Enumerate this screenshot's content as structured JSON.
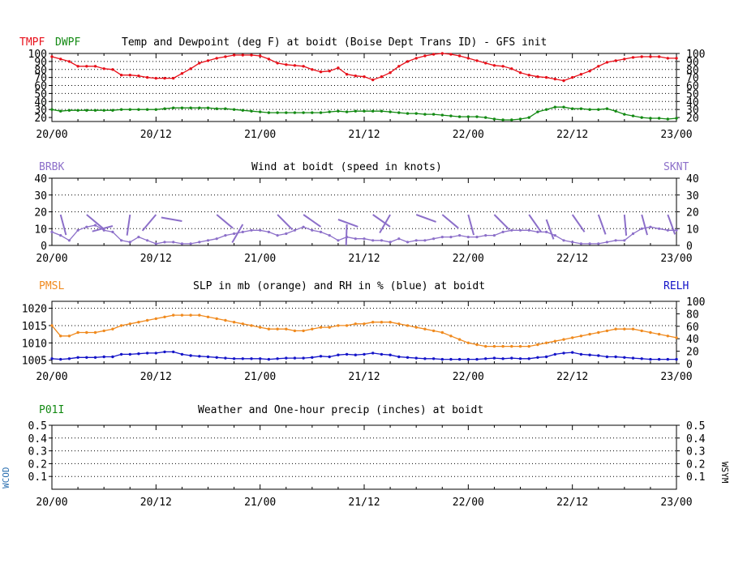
{
  "colors": {
    "temp": "#e8101a",
    "dewpoint": "#138a13",
    "wind": "#8c6fc9",
    "slp": "#f08a1e",
    "rh": "#1414c8",
    "precip": "#138a13",
    "wcod": "#2a6fb0",
    "axis": "#000000",
    "grid": "#000000"
  },
  "time_labels": [
    "20/00",
    "20/12",
    "21/00",
    "21/12",
    "22/00",
    "22/12",
    "23/00"
  ],
  "panel1": {
    "left_label_1": "TMPF",
    "left_label_2": "DWPF",
    "title": "Temp and Dewpoint (deg F) at boidt (Boise Dept Trans ID) - GFS init"
  },
  "panel2": {
    "left_label": "BRBK",
    "title": "Wind at  boidt (speed in knots)",
    "right_label": "SKNT"
  },
  "panel3": {
    "left_label": "PMSL",
    "title": "SLP in mb (orange) and RH in % (blue) at  boidt",
    "right_label": "RELH"
  },
  "panel4": {
    "left_label": "P01I",
    "title": "Weather and One-hour precip (inches) at  boidt",
    "side_left": "WCOD",
    "side_right": "WSYM"
  },
  "chart_data": [
    {
      "type": "line",
      "title": "Temp and Dewpoint (deg F) at boidt (Boise Dept Trans ID) - GFS init",
      "x_hours_range": [
        0,
        72
      ],
      "ylim": [
        15,
        100
      ],
      "yticks_left": [
        20,
        30,
        40,
        50,
        60,
        70,
        80,
        90,
        100
      ],
      "yticks_right": [
        20,
        30,
        40,
        50,
        60,
        70,
        80,
        90,
        100
      ],
      "series": [
        {
          "name": "TMPF",
          "x": [
            0,
            1,
            2,
            3,
            4,
            5,
            6,
            7,
            8,
            9,
            10,
            11,
            12,
            13,
            14,
            15,
            16,
            17,
            18,
            19,
            20,
            21,
            22,
            23,
            24,
            25,
            26,
            27,
            28,
            29,
            30,
            31,
            32,
            33,
            34,
            35,
            36,
            37,
            38,
            39,
            40,
            41,
            42,
            43,
            44,
            45,
            46,
            47,
            48,
            49,
            50,
            51,
            52,
            53,
            54,
            55,
            56,
            57,
            58,
            59,
            60,
            61,
            62,
            63,
            64,
            65,
            66,
            67,
            68,
            69,
            70,
            71,
            72
          ],
          "values": [
            96,
            93,
            90,
            84,
            84,
            84,
            81,
            80,
            73,
            73,
            72,
            70,
            69,
            69,
            69,
            75,
            81,
            88,
            91,
            94,
            96,
            98,
            98,
            98,
            97,
            93,
            88,
            86,
            85,
            84,
            80,
            77,
            78,
            82,
            74,
            72,
            71,
            67,
            71,
            76,
            84,
            90,
            94,
            97,
            99,
            100,
            99,
            97,
            94,
            91,
            88,
            85,
            84,
            81,
            76,
            73,
            71,
            70,
            68,
            66,
            70,
            74,
            78,
            84,
            89,
            91,
            93,
            95,
            96,
            96,
            96,
            94,
            94
          ]
        },
        {
          "name": "DWPF",
          "x": [
            0,
            1,
            2,
            3,
            4,
            5,
            6,
            7,
            8,
            9,
            10,
            11,
            12,
            13,
            14,
            15,
            16,
            17,
            18,
            19,
            20,
            21,
            22,
            23,
            24,
            25,
            26,
            27,
            28,
            29,
            30,
            31,
            32,
            33,
            34,
            35,
            36,
            37,
            38,
            39,
            40,
            41,
            42,
            43,
            44,
            45,
            46,
            47,
            48,
            49,
            50,
            51,
            52,
            53,
            54,
            55,
            56,
            57,
            58,
            59,
            60,
            61,
            62,
            63,
            64,
            65,
            66,
            67,
            68,
            69,
            70,
            71,
            72
          ],
          "values": [
            30,
            28,
            29,
            29,
            29,
            29,
            29,
            29,
            30,
            30,
            30,
            30,
            30,
            31,
            32,
            32,
            32,
            32,
            32,
            31,
            31,
            30,
            29,
            28,
            27,
            26,
            26,
            26,
            26,
            26,
            26,
            26,
            27,
            28,
            27,
            28,
            28,
            28,
            28,
            27,
            26,
            25,
            25,
            24,
            24,
            23,
            22,
            21,
            21,
            21,
            20,
            18,
            17,
            17,
            18,
            20,
            27,
            30,
            33,
            33,
            31,
            31,
            30,
            30,
            31,
            28,
            24,
            22,
            20,
            19,
            19,
            18,
            19
          ]
        }
      ]
    },
    {
      "type": "line",
      "title": "Wind at  boidt (speed in knots)",
      "x_hours_range": [
        0,
        72
      ],
      "ylim": [
        0,
        40
      ],
      "yticks_left": [
        0,
        10,
        20,
        30,
        40
      ],
      "yticks_right": [
        0,
        10,
        20,
        30,
        40
      ],
      "series": [
        {
          "name": "SKNT",
          "x": [
            0,
            1,
            2,
            3,
            4,
            5,
            6,
            7,
            8,
            9,
            10,
            11,
            12,
            13,
            14,
            15,
            16,
            17,
            18,
            19,
            20,
            21,
            22,
            23,
            24,
            25,
            26,
            27,
            28,
            29,
            30,
            31,
            32,
            33,
            34,
            35,
            36,
            37,
            38,
            39,
            40,
            41,
            42,
            43,
            44,
            45,
            46,
            47,
            48,
            49,
            50,
            51,
            52,
            53,
            54,
            55,
            56,
            57,
            58,
            59,
            60,
            61,
            62,
            63,
            64,
            65,
            66,
            67,
            68,
            69,
            70,
            71,
            72
          ],
          "values": [
            8,
            6,
            3,
            9,
            11,
            12,
            9,
            8,
            3,
            2,
            5,
            3,
            1,
            2,
            2,
            1,
            1,
            2,
            3,
            4,
            6,
            7,
            8,
            9,
            9,
            8,
            6,
            7,
            9,
            11,
            9,
            8,
            6,
            3,
            5,
            4,
            4,
            3,
            3,
            2,
            4,
            2,
            3,
            3,
            4,
            5,
            5,
            6,
            5,
            5,
            6,
            6,
            8,
            9,
            9,
            9,
            8,
            8,
            6,
            3,
            2,
            1,
            1,
            1,
            2,
            3,
            3,
            7,
            10,
            11,
            10,
            9,
            9
          ]
        }
      ]
    },
    {
      "type": "line",
      "title": "SLP in mb (orange) and RH in % (blue) at  boidt",
      "x_hours_range": [
        0,
        72
      ],
      "ylim_left": [
        1004,
        1022
      ],
      "ylim_right": [
        0,
        100
      ],
      "yticks_left": [
        1005,
        1010,
        1015,
        1020
      ],
      "yticks_right": [
        0,
        20,
        40,
        60,
        80,
        100
      ],
      "series": [
        {
          "name": "PMSL",
          "x": [
            0,
            1,
            2,
            3,
            4,
            5,
            6,
            7,
            8,
            9,
            10,
            11,
            12,
            13,
            14,
            15,
            16,
            17,
            18,
            19,
            20,
            21,
            22,
            23,
            24,
            25,
            26,
            27,
            28,
            29,
            30,
            31,
            32,
            33,
            34,
            35,
            36,
            37,
            38,
            39,
            40,
            41,
            42,
            43,
            44,
            45,
            46,
            47,
            48,
            49,
            50,
            51,
            52,
            53,
            54,
            55,
            56,
            57,
            58,
            59,
            60,
            61,
            62,
            63,
            64,
            65,
            66,
            67,
            68,
            69,
            70,
            71,
            72
          ],
          "values": [
            1015,
            1012,
            1012,
            1013,
            1013,
            1013,
            1013.5,
            1014,
            1015,
            1015.5,
            1016,
            1016.5,
            1017,
            1017.5,
            1018,
            1018,
            1018,
            1018,
            1017.5,
            1017,
            1016.5,
            1016,
            1015.5,
            1015,
            1014.5,
            1014,
            1014,
            1014,
            1013.5,
            1013.5,
            1014,
            1014.5,
            1014.5,
            1015,
            1015,
            1015.5,
            1015.5,
            1016,
            1016,
            1016,
            1015.5,
            1015,
            1014.5,
            1014,
            1013.5,
            1013,
            1012,
            1011,
            1010,
            1009.5,
            1009,
            1009,
            1009,
            1009,
            1009,
            1009,
            1009.5,
            1010,
            1010.5,
            1011,
            1011.5,
            1012,
            1012.5,
            1013,
            1013.5,
            1014,
            1014,
            1014,
            1013.5,
            1013,
            1012.5,
            1012,
            1011.5
          ]
        },
        {
          "name": "RELH",
          "x": [
            0,
            1,
            2,
            3,
            4,
            5,
            6,
            7,
            8,
            9,
            10,
            11,
            12,
            13,
            14,
            15,
            16,
            17,
            18,
            19,
            20,
            21,
            22,
            23,
            24,
            25,
            26,
            27,
            28,
            29,
            30,
            31,
            32,
            33,
            34,
            35,
            36,
            37,
            38,
            39,
            40,
            41,
            42,
            43,
            44,
            45,
            46,
            47,
            48,
            49,
            50,
            51,
            52,
            53,
            54,
            55,
            56,
            57,
            58,
            59,
            60,
            61,
            62,
            63,
            64,
            65,
            66,
            67,
            68,
            69,
            70,
            71,
            72
          ],
          "values": [
            8,
            7,
            8,
            10,
            10,
            10,
            11,
            11,
            15,
            15,
            16,
            17,
            17,
            19,
            19,
            15,
            13,
            12,
            11,
            10,
            9,
            8,
            8,
            8,
            8,
            7,
            8,
            9,
            9,
            9,
            10,
            12,
            11,
            14,
            15,
            14,
            15,
            17,
            15,
            14,
            11,
            10,
            9,
            8,
            8,
            7,
            7,
            7,
            7,
            7,
            8,
            9,
            8,
            9,
            8,
            8,
            10,
            11,
            15,
            17,
            18,
            15,
            14,
            13,
            11,
            11,
            10,
            9,
            8,
            7,
            7,
            7,
            7
          ]
        }
      ]
    },
    {
      "type": "line",
      "title": "Weather and One-hour precip (inches) at  boidt",
      "x_hours_range": [
        0,
        72
      ],
      "ylim": [
        0,
        0.5
      ],
      "yticks_left": [
        0.1,
        0.2,
        0.3,
        0.4,
        0.5
      ],
      "yticks_right": [
        0.1,
        0.2,
        0.3,
        0.4,
        0.5
      ],
      "series": []
    }
  ]
}
